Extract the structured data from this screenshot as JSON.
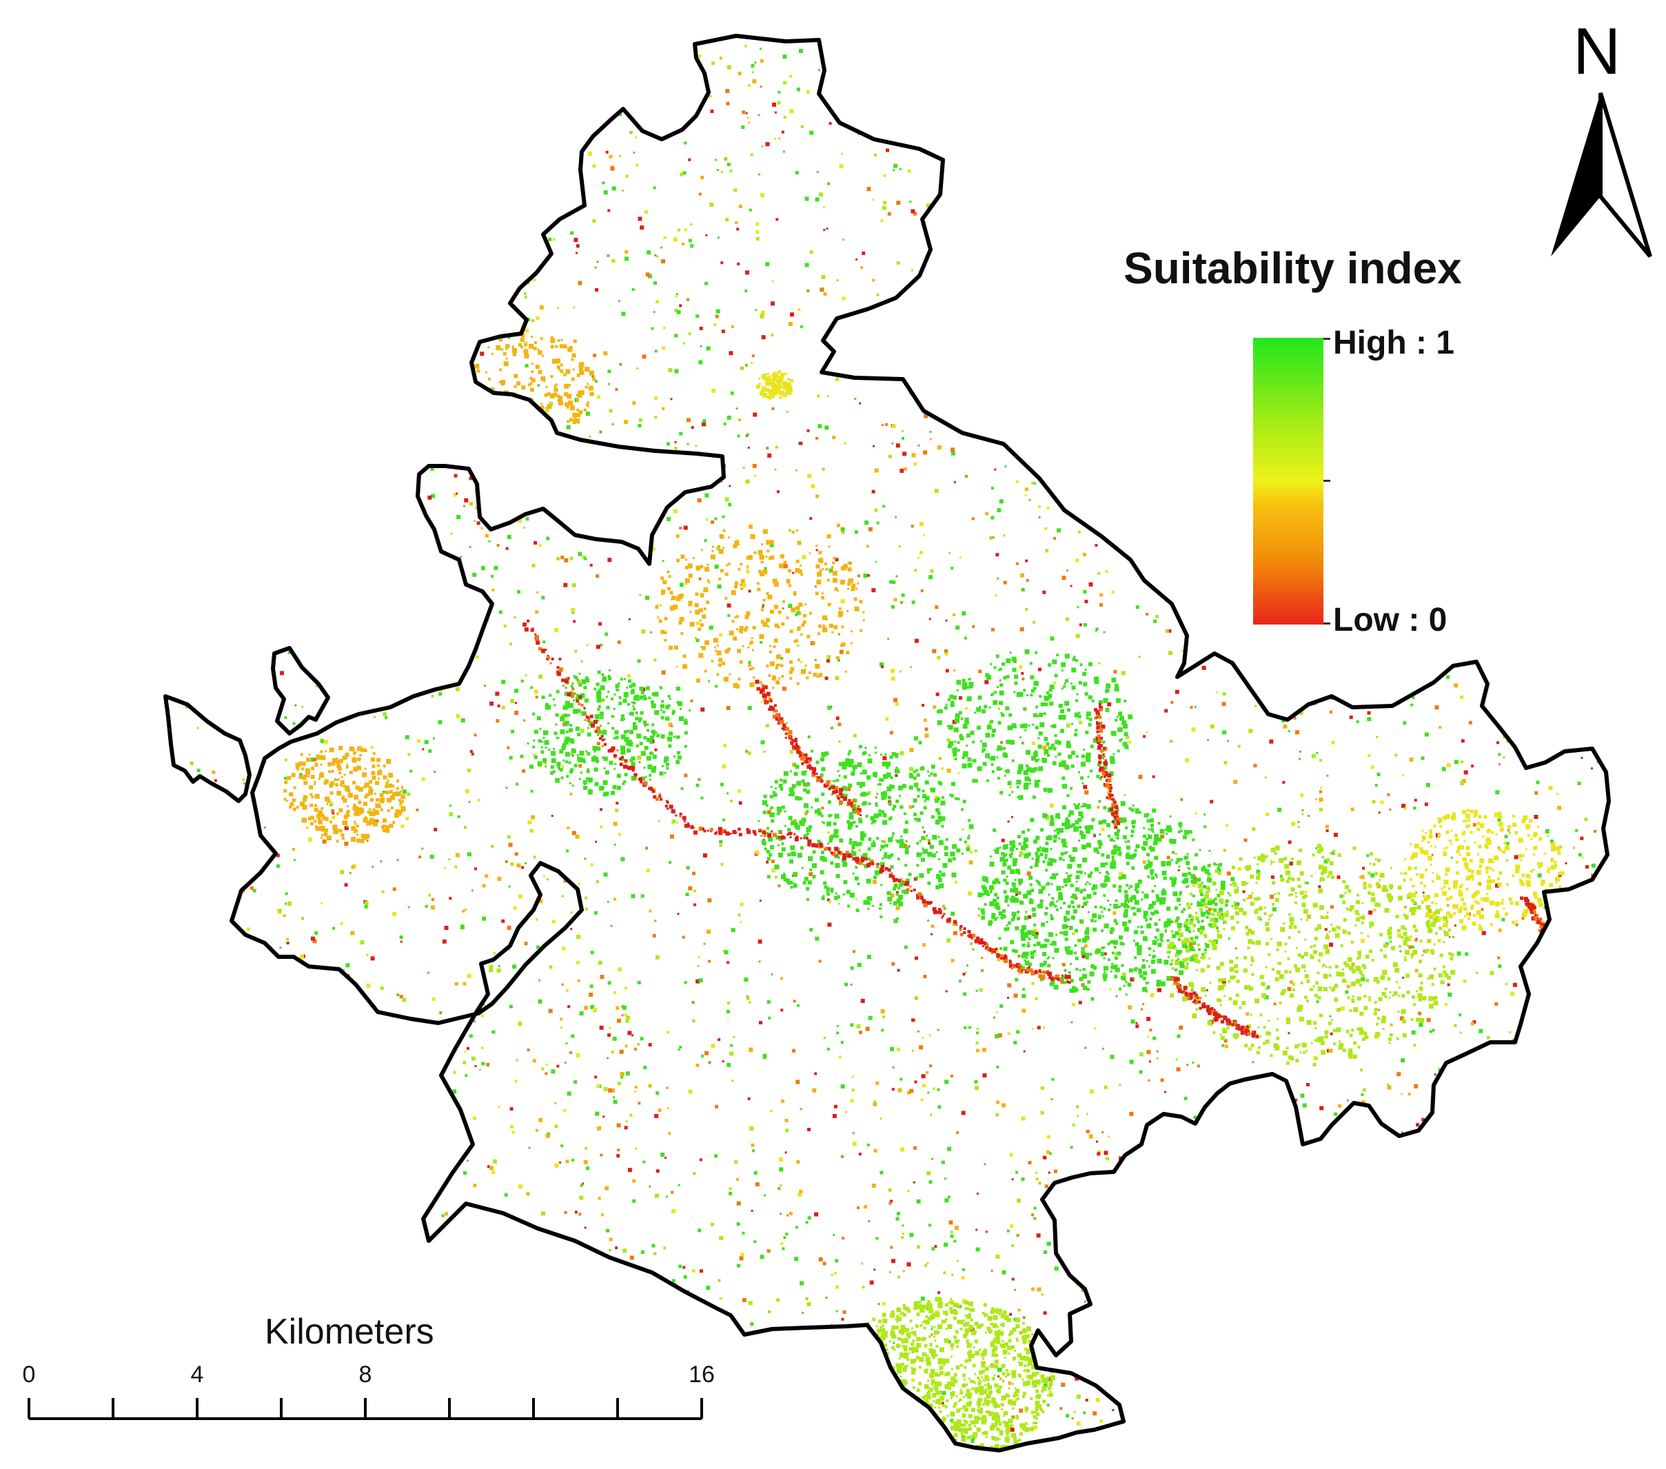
{
  "legend": {
    "title": "Suitability index",
    "high_label": "High : 1",
    "low_label": "Low : 0",
    "ramp_colors": [
      "#22e61c",
      "#a6ec16",
      "#eef21a",
      "#f7c20f",
      "#f28a0a",
      "#e8261a"
    ]
  },
  "north_arrow": {
    "letter": "N"
  },
  "scale_bar": {
    "unit": "Kilometers",
    "labels": [
      "0",
      "4",
      "8",
      "16"
    ],
    "values": [
      0,
      4,
      8,
      16
    ],
    "major_divisions": [
      0,
      2,
      4,
      6,
      8,
      10,
      12,
      14,
      16
    ]
  },
  "map": {
    "boundary_color": "#000000",
    "class_colors": {
      "high": "#3fe020",
      "mid_high": "#aee81a",
      "mid": "#e9e51c",
      "mid_low": "#f3b312",
      "low_mid": "#ee7a10",
      "low": "#dd1f1a"
    }
  }
}
